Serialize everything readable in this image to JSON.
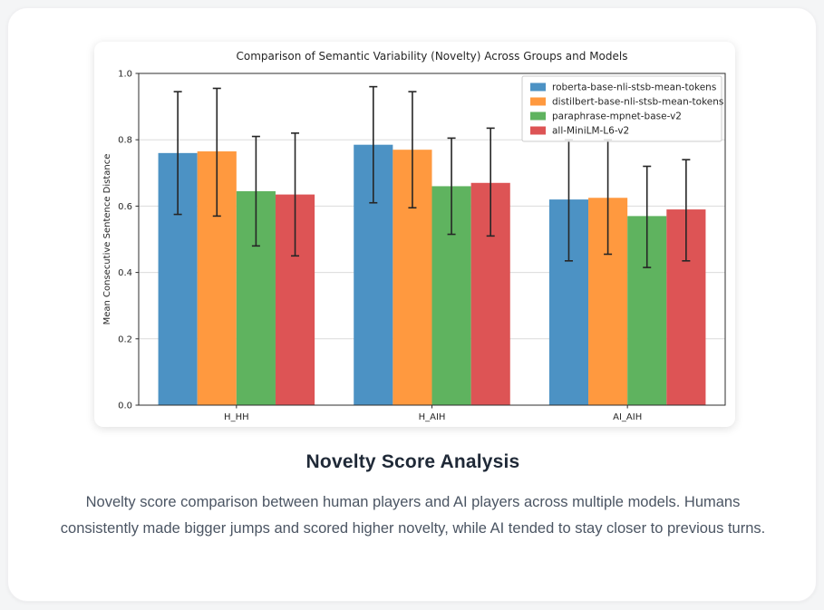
{
  "page": {
    "heading": "Novelty Score Analysis",
    "description": "Novelty score comparison between human players and AI players across multiple models. Humans consistently made bigger jumps and scored higher novelty, while AI tended to stay closer to previous turns."
  },
  "chart_data": {
    "type": "bar",
    "title": "Comparison of Semantic Variability (Novelty) Across Groups and Models",
    "xlabel": "",
    "ylabel": "Mean Consecutive Sentence Distance",
    "categories": [
      "H_HH",
      "H_AIH",
      "AI_AIH"
    ],
    "ylim": [
      0.0,
      1.0
    ],
    "yticks": [
      0.0,
      0.2,
      0.4,
      0.6,
      0.8,
      1.0
    ],
    "grid": true,
    "legend_position": "upper right",
    "error_bar_color": "#262626",
    "axis_color": "#2e2e2e",
    "gridline_color": "#dcdcdc",
    "series": [
      {
        "name": "roberta-base-nli-stsb-mean-tokens",
        "color": "#4c92c4",
        "values": [
          0.76,
          0.785,
          0.62
        ],
        "err_low": [
          0.575,
          0.61,
          0.435
        ],
        "err_high": [
          0.945,
          0.96,
          0.8
        ]
      },
      {
        "name": "distilbert-base-nli-stsb-mean-tokens",
        "color": "#ff993f",
        "values": [
          0.765,
          0.77,
          0.625
        ],
        "err_low": [
          0.57,
          0.595,
          0.455
        ],
        "err_high": [
          0.955,
          0.945,
          0.8
        ]
      },
      {
        "name": "paraphrase-mpnet-base-v2",
        "color": "#5fb35f",
        "values": [
          0.645,
          0.66,
          0.57
        ],
        "err_low": [
          0.48,
          0.515,
          0.415
        ],
        "err_high": [
          0.81,
          0.805,
          0.72
        ]
      },
      {
        "name": "all-MiniLM-L6-v2",
        "color": "#dd5455",
        "values": [
          0.635,
          0.67,
          0.59
        ],
        "err_low": [
          0.45,
          0.51,
          0.435
        ],
        "err_high": [
          0.82,
          0.835,
          0.74
        ]
      }
    ]
  }
}
